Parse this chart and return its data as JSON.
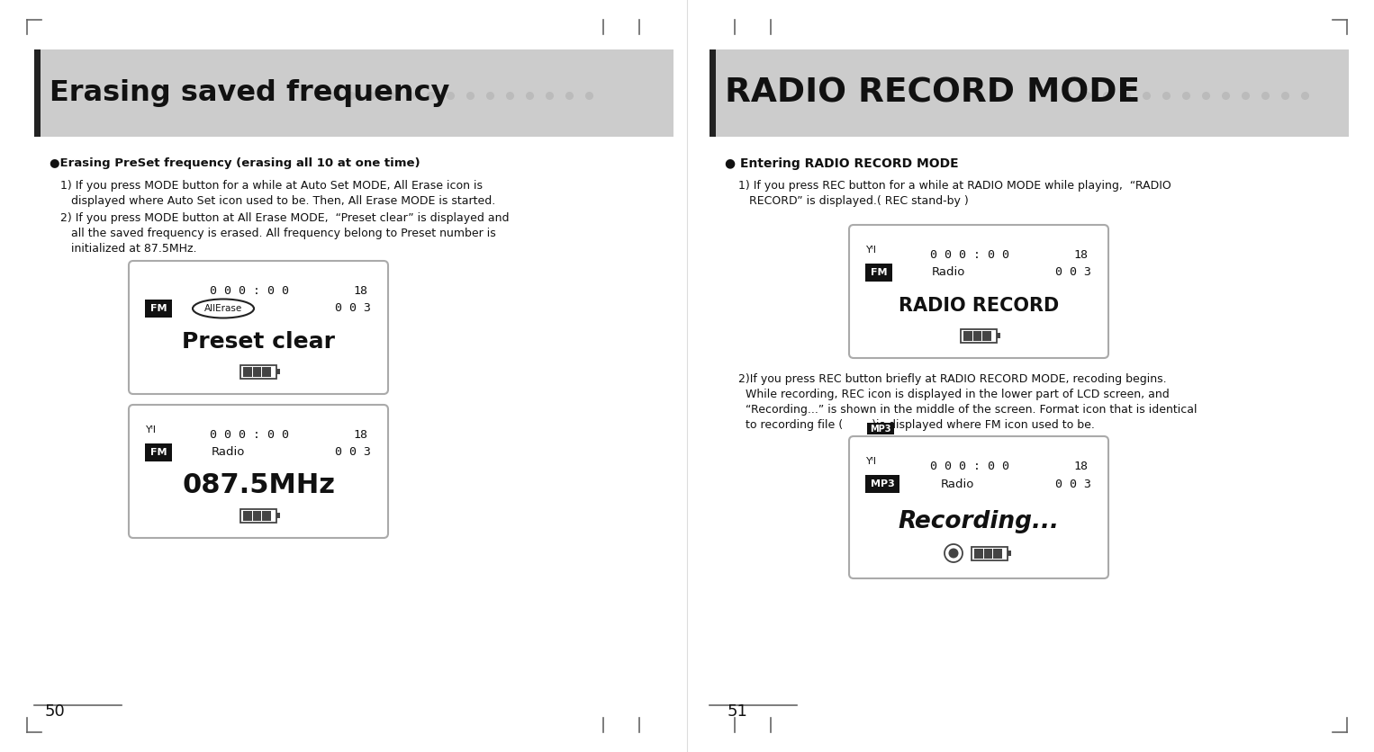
{
  "bg_color": "#ffffff",
  "header_bg": "#cccccc",
  "header_left_title": "Erasing saved frequency",
  "header_right_title": "RADIO RECORD MODE",
  "left_page_num": "50",
  "right_page_num": "51",
  "dot_color": "#bbbbbb",
  "tick_color": "#666666",
  "text_color": "#111111",
  "lcd_bg": "#ffffff",
  "lcd_border": "#aaaaaa",
  "left_section_title": "●Erasing PreSet frequency (erasing all 10 at one time)",
  "left_para1_lines": [
    "1) If you press MODE button for a while at Auto Set MODE, All Erase icon is",
    "   displayed where Auto Set icon used to be. Then, All Erase MODE is started."
  ],
  "left_para2_lines": [
    "2) If you press MODE button at All Erase MODE,  “Preset clear” is displayed and",
    "   all the saved frequency is erased. All frequency belong to Preset number is",
    "   initialized at 87.5MHz."
  ],
  "right_section_title": "● Entering RADIO RECORD MODE",
  "right_para1_lines": [
    "1) If you press REC button for a while at RADIO MODE while playing,  “RADIO",
    "   RECORD” is displayed.( REC stand-by )"
  ],
  "right_para2_lines": [
    "2)If you press REC button briefly at RADIO RECORD MODE, recoding begins.",
    "  While recording, REC icon is displayed in the lower part of LCD screen, and",
    "  “Recording...” is shown in the middle of the screen. Format icon that is identical",
    "  to recording file (        )is displayed where FM icon used to be."
  ]
}
